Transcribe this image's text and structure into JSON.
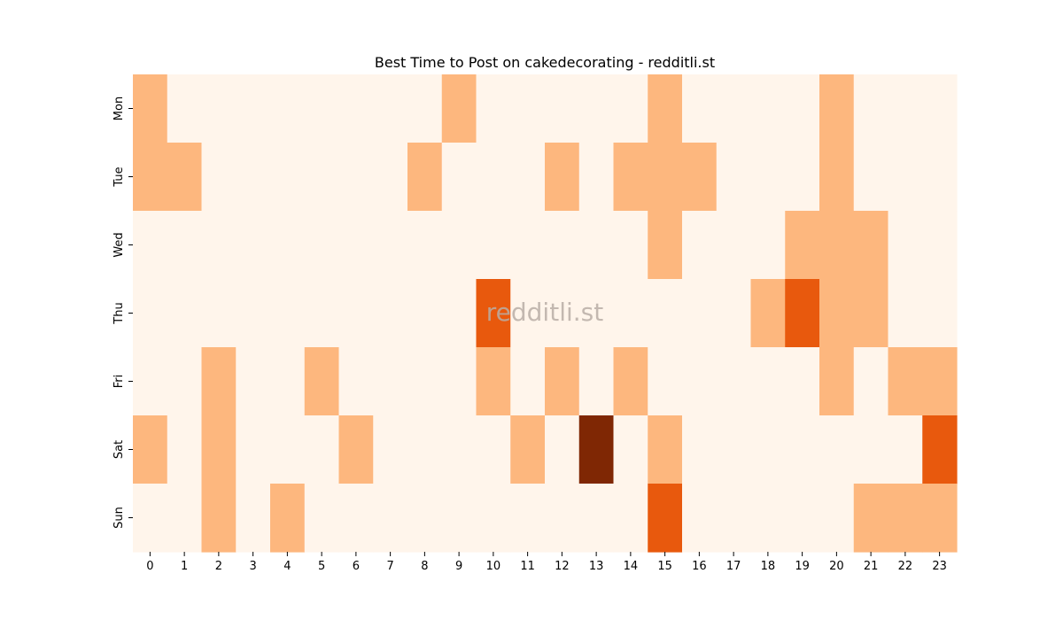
{
  "chart_data": {
    "type": "heatmap",
    "title": "Best Time to Post on cakedecorating - redditli.st",
    "watermark": "redditli.st",
    "xlabel": "",
    "ylabel": "",
    "x_categories": [
      "0",
      "1",
      "2",
      "3",
      "4",
      "5",
      "6",
      "7",
      "8",
      "9",
      "10",
      "11",
      "12",
      "13",
      "14",
      "15",
      "16",
      "17",
      "18",
      "19",
      "20",
      "21",
      "22",
      "23"
    ],
    "y_categories": [
      "Mon",
      "Tue",
      "Wed",
      "Thu",
      "Fri",
      "Sat",
      "Sun"
    ],
    "values": [
      [
        1,
        0,
        0,
        0,
        0,
        0,
        0,
        0,
        0,
        1,
        0,
        0,
        0,
        0,
        0,
        1,
        0,
        0,
        0,
        0,
        1,
        0,
        0,
        0
      ],
      [
        1,
        1,
        0,
        0,
        0,
        0,
        0,
        0,
        1,
        0,
        0,
        0,
        1,
        0,
        1,
        1,
        1,
        0,
        0,
        0,
        1,
        0,
        0,
        0
      ],
      [
        0,
        0,
        0,
        0,
        0,
        0,
        0,
        0,
        0,
        0,
        0,
        0,
        0,
        0,
        0,
        1,
        0,
        0,
        0,
        1,
        1,
        1,
        0,
        0
      ],
      [
        0,
        0,
        0,
        0,
        0,
        0,
        0,
        0,
        0,
        0,
        2,
        0,
        0,
        0,
        0,
        0,
        0,
        0,
        1,
        2,
        1,
        1,
        0,
        0
      ],
      [
        0,
        0,
        1,
        0,
        0,
        1,
        0,
        0,
        0,
        0,
        1,
        0,
        1,
        0,
        1,
        0,
        0,
        0,
        0,
        0,
        1,
        0,
        1,
        1
      ],
      [
        1,
        0,
        1,
        0,
        0,
        0,
        1,
        0,
        0,
        0,
        0,
        1,
        0,
        3,
        0,
        1,
        0,
        0,
        0,
        0,
        0,
        0,
        0,
        2
      ],
      [
        0,
        0,
        1,
        0,
        1,
        0,
        0,
        0,
        0,
        0,
        0,
        0,
        0,
        0,
        0,
        2,
        0,
        0,
        0,
        0,
        0,
        1,
        1,
        1
      ]
    ],
    "colormap": [
      "#fff5eb",
      "#fdb77e",
      "#e8590d",
      "#7f2704"
    ],
    "grid": false,
    "legend": "none"
  }
}
